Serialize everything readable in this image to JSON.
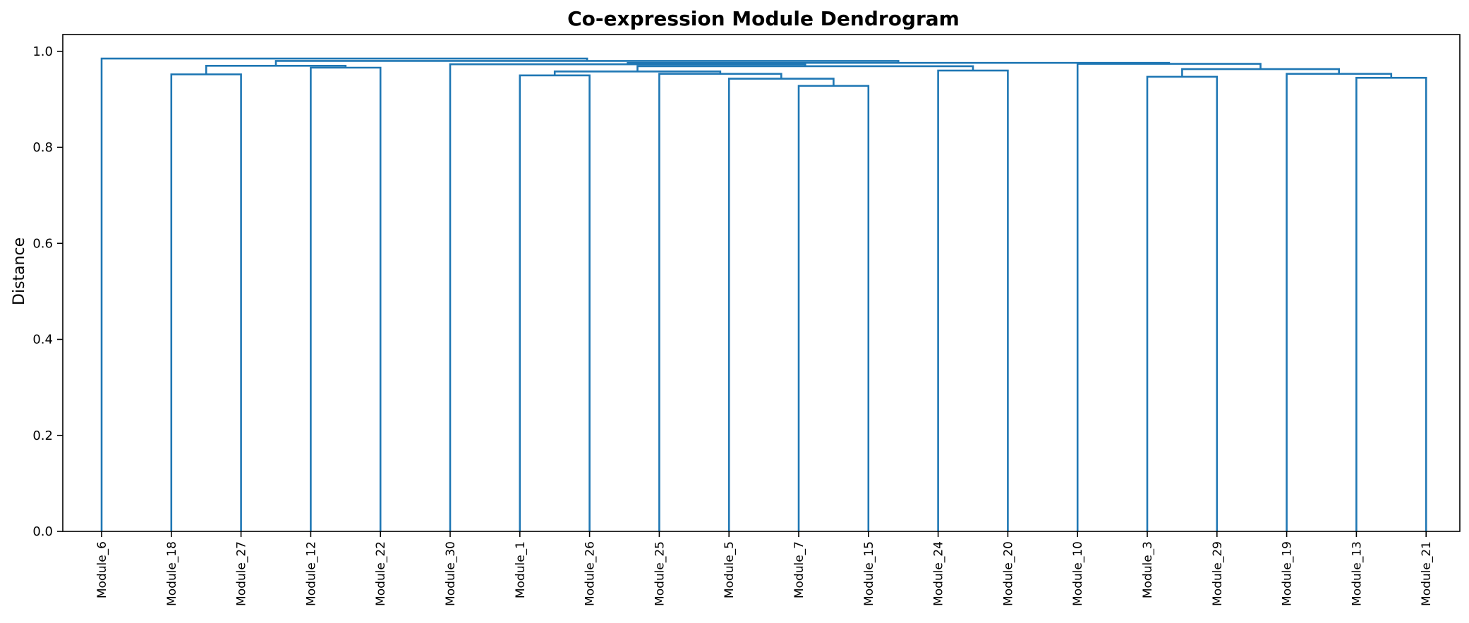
{
  "chart_data": {
    "type": "dendrogram",
    "title": "Co-expression Module Dendrogram",
    "xlabel": "",
    "ylabel": "Distance",
    "ylim": [
      0,
      1.035
    ],
    "yticks": [
      "0.0",
      "0.2",
      "0.4",
      "0.6",
      "0.8",
      "1.0"
    ],
    "ytick_values": [
      0.0,
      0.2,
      0.4,
      0.6,
      0.8,
      1.0
    ],
    "grid": false,
    "line_color": "#1f77b4",
    "leaves": [
      "Module_6",
      "Module_18",
      "Module_27",
      "Module_12",
      "Module_22",
      "Module_30",
      "Module_1",
      "Module_26",
      "Module_25",
      "Module_5",
      "Module_7",
      "Module_15",
      "Module_24",
      "Module_20",
      "Module_10",
      "Module_3",
      "Module_29",
      "Module_19",
      "Module_13",
      "Module_21"
    ],
    "merges": [
      {
        "a": "L1",
        "b": "L2",
        "height": 0.952
      },
      {
        "a": "L3",
        "b": "L4",
        "height": 0.966
      },
      {
        "a": "M0",
        "b": "M1",
        "height": 0.97
      },
      {
        "a": "L6",
        "b": "L7",
        "height": 0.95
      },
      {
        "a": "L10",
        "b": "L11",
        "height": 0.928
      },
      {
        "a": "L9",
        "b": "M4",
        "height": 0.943
      },
      {
        "a": "L8",
        "b": "M5",
        "height": 0.953
      },
      {
        "a": "M3",
        "b": "M6",
        "height": 0.958
      },
      {
        "a": "L12",
        "b": "L13",
        "height": 0.96
      },
      {
        "a": "M7",
        "b": "M8",
        "height": 0.969
      },
      {
        "a": "L5",
        "b": "M9",
        "height": 0.973
      },
      {
        "a": "L15",
        "b": "L16",
        "height": 0.947
      },
      {
        "a": "L18",
        "b": "L19",
        "height": 0.945
      },
      {
        "a": "L17",
        "b": "M12",
        "height": 0.953
      },
      {
        "a": "M11",
        "b": "M13",
        "height": 0.963
      },
      {
        "a": "L14",
        "b": "M14",
        "height": 0.974
      },
      {
        "a": "M10",
        "b": "M15",
        "height": 0.976
      },
      {
        "a": "M2",
        "b": "M16",
        "height": 0.98
      },
      {
        "a": "L0",
        "b": "M17",
        "height": 0.985
      }
    ]
  }
}
